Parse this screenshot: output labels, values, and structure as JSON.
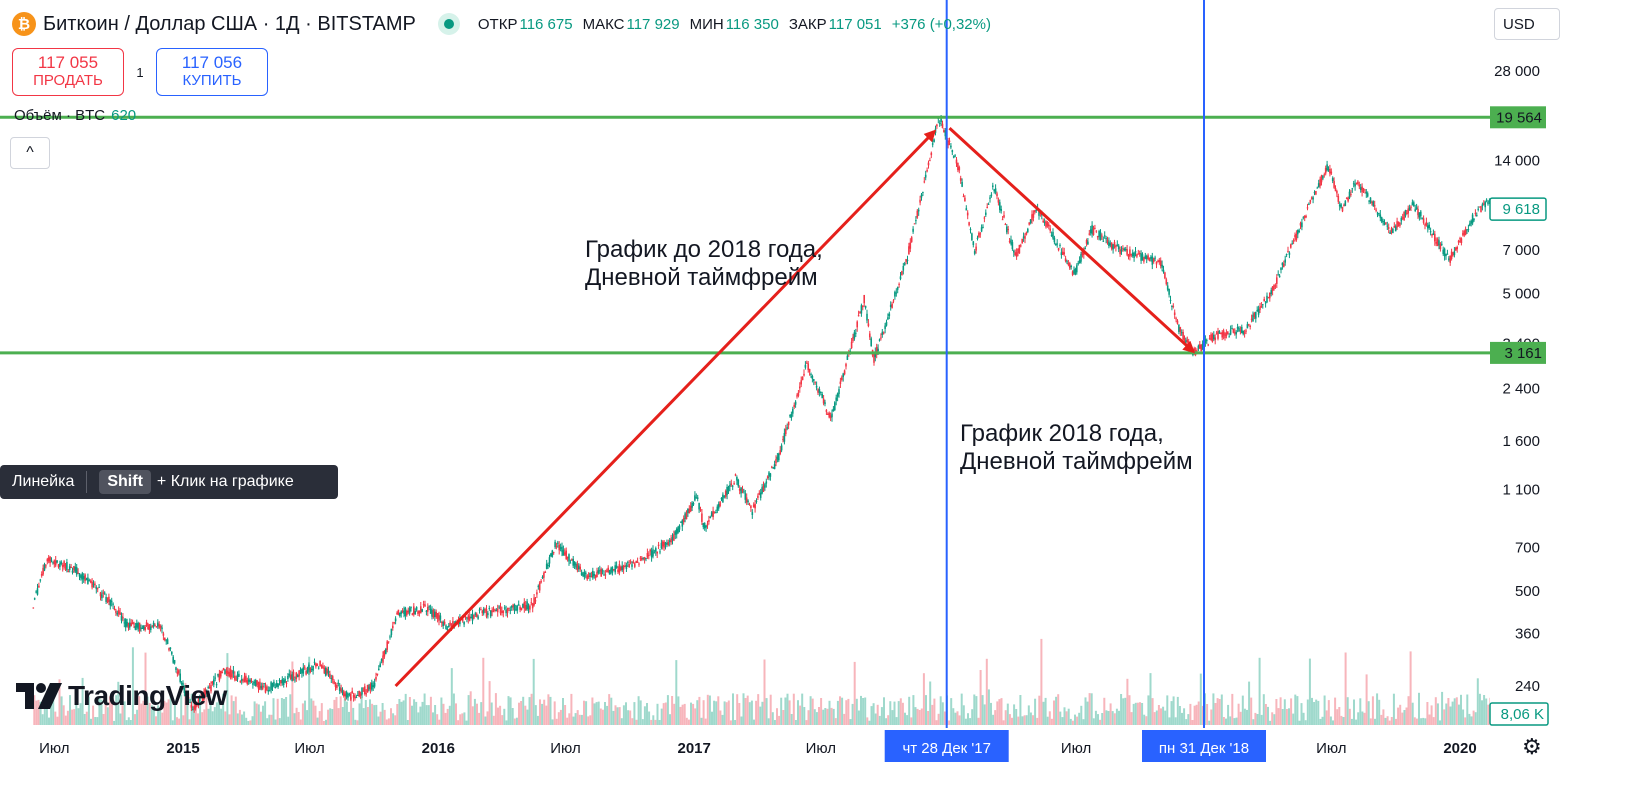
{
  "header": {
    "coin_icon": "bitcoin-icon",
    "coin_glyph": "₿",
    "symbol": "Биткоин / Доллар США · 1Д · BITSTAMP",
    "ohlc": [
      {
        "label": "ОТКР",
        "value": "116 675"
      },
      {
        "label": "МАКС",
        "value": "117 929"
      },
      {
        "label": "МИН",
        "value": "116 350"
      },
      {
        "label": "ЗАКР",
        "value": "117 051"
      }
    ],
    "change": "+376 (+0,32%)"
  },
  "trade": {
    "sell_price": "117 055",
    "sell_label": "ПРОДАТЬ",
    "spread": "1",
    "buy_price": "117 056",
    "buy_label": "КУПИТЬ"
  },
  "volume_legend": {
    "label": "Объём · BTC",
    "value": "620"
  },
  "collapse_glyph": "^",
  "currency": "USD",
  "ruler_hint": {
    "name": "Линейка",
    "key": "Shift",
    "text": "+ Клик на графике"
  },
  "logo_text": "TradingView",
  "settings_icon": "gear-icon",
  "colors": {
    "up": "#089981",
    "down": "#f23645",
    "level": "#4caf50",
    "vline": "#2962ff",
    "arrow": "#e5201b"
  },
  "chart_data": {
    "type": "candlestick",
    "title": "",
    "scale": "log",
    "grid": false,
    "y_ticks": [
      28000,
      14000,
      7000,
      5000,
      3400,
      2400,
      1600,
      1100,
      700,
      500,
      360,
      240
    ],
    "y_tick_labels": [
      "28 000",
      "14 000",
      "7 000",
      "5 000",
      "3 400",
      "2 400",
      "1 600",
      "1 100",
      "700",
      "500",
      "360",
      "240"
    ],
    "x_ticks": [
      "Июл",
      "2015",
      "Июл",
      "2016",
      "Июл",
      "2017",
      "Июл",
      "чт 28 Дек '17",
      "Июл",
      "пн 31 Дек '18",
      "Июл",
      "2020"
    ],
    "x_ticks_dates": [
      "2014-07-01",
      "2015-01-01",
      "2015-07-01",
      "2016-01-01",
      "2016-07-01",
      "2017-01-01",
      "2017-07-01",
      "2017-12-28",
      "2018-07-01",
      "2018-12-31",
      "2019-07-01",
      "2020-01-01"
    ],
    "x_highlighted": [
      "чт 28 Дек '17",
      "пн 31 Дек '18"
    ],
    "price_path": [
      [
        "2014-06-01",
        450
      ],
      [
        "2014-06-20",
        640
      ],
      [
        "2014-08-01",
        590
      ],
      [
        "2014-09-15",
        470
      ],
      [
        "2014-10-15",
        380
      ],
      [
        "2014-12-01",
        380
      ],
      [
        "2015-01-14",
        200
      ],
      [
        "2015-03-01",
        270
      ],
      [
        "2015-05-01",
        235
      ],
      [
        "2015-07-15",
        285
      ],
      [
        "2015-08-25",
        220
      ],
      [
        "2015-10-01",
        240
      ],
      [
        "2015-11-04",
        420
      ],
      [
        "2015-12-15",
        440
      ],
      [
        "2016-01-15",
        380
      ],
      [
        "2016-03-01",
        420
      ],
      [
        "2016-05-15",
        450
      ],
      [
        "2016-06-17",
        720
      ],
      [
        "2016-08-01",
        560
      ],
      [
        "2016-10-01",
        610
      ],
      [
        "2016-12-01",
        740
      ],
      [
        "2017-01-05",
        1050
      ],
      [
        "2017-01-15",
        820
      ],
      [
        "2017-03-01",
        1200
      ],
      [
        "2017-03-25",
        930
      ],
      [
        "2017-05-01",
        1400
      ],
      [
        "2017-06-11",
        2900
      ],
      [
        "2017-07-16",
        1900
      ],
      [
        "2017-09-01",
        4800
      ],
      [
        "2017-09-15",
        3000
      ],
      [
        "2017-11-01",
        6500
      ],
      [
        "2017-12-17",
        19564
      ],
      [
        "2018-01-15",
        13000
      ],
      [
        "2018-02-06",
        6900
      ],
      [
        "2018-03-05",
        11500
      ],
      [
        "2018-04-06",
        6600
      ],
      [
        "2018-05-05",
        9800
      ],
      [
        "2018-06-29",
        5800
      ],
      [
        "2018-07-24",
        8200
      ],
      [
        "2018-09-01",
        7000
      ],
      [
        "2018-10-31",
        6300
      ],
      [
        "2018-11-25",
        3800
      ],
      [
        "2018-12-15",
        3161
      ],
      [
        "2019-01-15",
        3600
      ],
      [
        "2019-03-01",
        3800
      ],
      [
        "2019-04-05",
        5000
      ],
      [
        "2019-06-26",
        13500
      ],
      [
        "2019-07-17",
        9500
      ],
      [
        "2019-08-06",
        12000
      ],
      [
        "2019-09-25",
        8000
      ],
      [
        "2019-10-26",
        10000
      ],
      [
        "2019-12-17",
        6500
      ],
      [
        "2020-01-20",
        9000
      ],
      [
        "2020-02-13",
        10400
      ]
    ],
    "horizontal_levels": [
      {
        "value": 19564,
        "label": "19 564"
      },
      {
        "value": 3161,
        "label": "3 161"
      }
    ],
    "last_price_label": "9 618",
    "last_volume_label": "8,06 K",
    "vertical_markers": [
      "2017-12-28",
      "2018-12-31"
    ],
    "annotations": [
      {
        "lines": [
          "График до 2018 года,",
          "Дневной таймфрейм"
        ]
      },
      {
        "lines": [
          "График 2018 года,",
          "Дневной таймфрейм"
        ]
      }
    ],
    "arrows": [
      {
        "from": [
          "2015-11-01",
          240
        ],
        "to": [
          "2017-12-10",
          17500
        ]
      },
      {
        "from": [
          "2018-01-01",
          18000
        ],
        "to": [
          "2018-12-15",
          3200
        ]
      }
    ]
  }
}
